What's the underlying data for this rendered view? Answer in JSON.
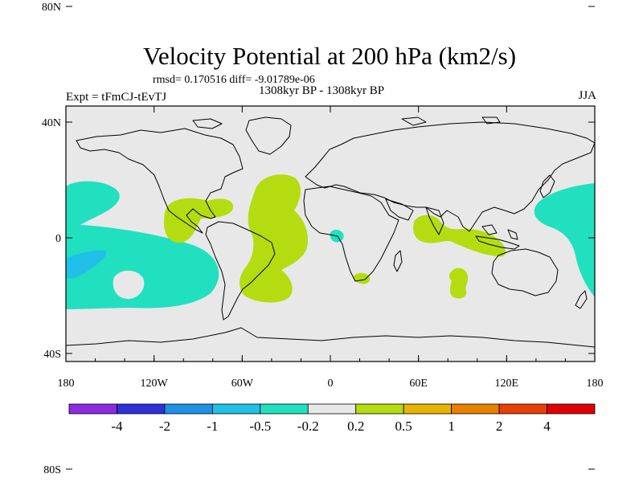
{
  "title": "Velocity Potential at 200 hPa (km2/s)",
  "stats_line": "rmsd= 0.170516 diff= -9.01789e-06",
  "expt_label": "Expt = tFmCJ-tEvTJ",
  "period_label": "1308kyr BP - 1308kyr BP",
  "season_label": "JJA",
  "map": {
    "lat_ticks": [
      {
        "value": 80,
        "label": "80N"
      },
      {
        "value": 40,
        "label": "40N"
      },
      {
        "value": 0,
        "label": "0"
      },
      {
        "value": -40,
        "label": "40S"
      },
      {
        "value": -80,
        "label": "80S"
      }
    ],
    "lon_ticks": [
      {
        "value": -180,
        "label": "180"
      },
      {
        "value": -120,
        "label": "120W"
      },
      {
        "value": -60,
        "label": "60W"
      },
      {
        "value": 0,
        "label": "0"
      },
      {
        "value": 60,
        "label": "60E"
      },
      {
        "value": 120,
        "label": "120E"
      },
      {
        "value": 180,
        "label": "180"
      }
    ],
    "background_color": "#e8e8e8"
  },
  "colorbar": {
    "labels": [
      "-4",
      "-2",
      "-1",
      "-0.5",
      "-0.2",
      "0.2",
      "0.5",
      "1",
      "2",
      "4"
    ],
    "colors": [
      "#8a2be2",
      "#3030d8",
      "#1e90e6",
      "#20c0e8",
      "#20e0c0",
      "#e8e8e8",
      "#b4dc10",
      "#e8b400",
      "#e88000",
      "#e84000",
      "#e00000"
    ]
  },
  "shading_colors": {
    "neg_light": "#20e0c0",
    "neg_medium": "#20c0e8",
    "pos_light": "#b4dc10"
  }
}
